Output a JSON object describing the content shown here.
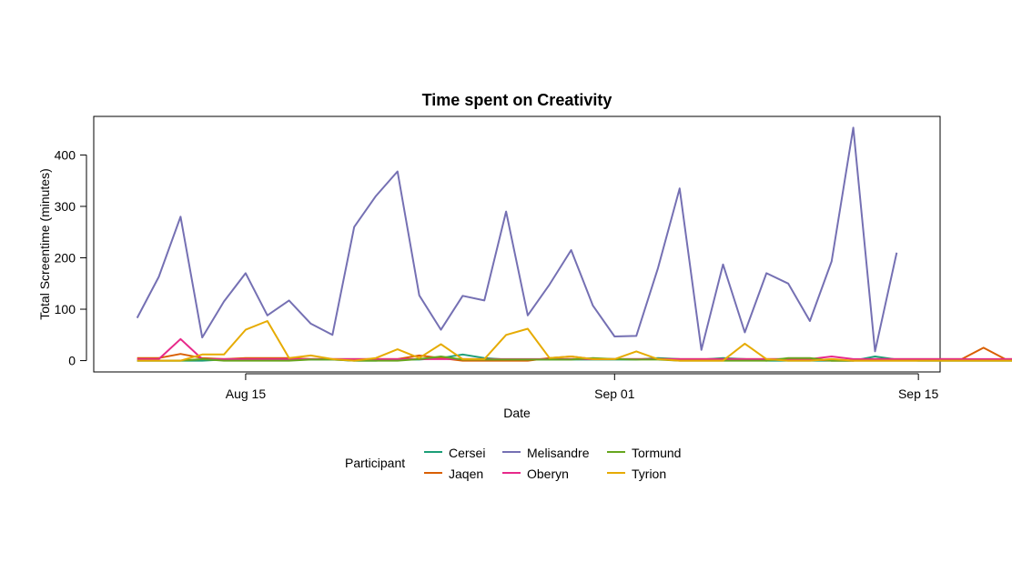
{
  "chart_data": {
    "type": "line",
    "title": "Time spent on Creativity",
    "xlabel": "Date",
    "ylabel": "Total Screentime (minutes)",
    "x_start": "2021-08-10",
    "x_ticks": [
      {
        "date": "2021-08-15",
        "label": "Aug 15"
      },
      {
        "date": "2021-09-01",
        "label": "Sep 01"
      },
      {
        "date": "2021-09-15",
        "label": "Sep 15"
      }
    ],
    "xlim": [
      "2021-08-08",
      "2021-09-16"
    ],
    "ylim": [
      -22,
      475
    ],
    "y_ticks": [
      0,
      100,
      200,
      300,
      400
    ],
    "grid": false,
    "legend": {
      "title": "Participant",
      "position": "bottom"
    },
    "series": [
      {
        "name": "Cersei",
        "color": "#1b9e77",
        "values": [
          0,
          0,
          0,
          0,
          2,
          2,
          2,
          2,
          2,
          2,
          0,
          0,
          2,
          2,
          5,
          12,
          5,
          2,
          2,
          2,
          2,
          2,
          2,
          2,
          5,
          3,
          2,
          5,
          3,
          0,
          0,
          0,
          0,
          0,
          8,
          2,
          0,
          0,
          0,
          0,
          0,
          0,
          0,
          0,
          0
        ]
      },
      {
        "name": "Jaqen",
        "color": "#d95f02",
        "values": [
          5,
          5,
          13,
          5,
          3,
          5,
          5,
          5,
          3,
          3,
          3,
          3,
          3,
          10,
          5,
          0,
          0,
          0,
          0,
          5,
          8,
          3,
          3,
          3,
          3,
          3,
          3,
          3,
          3,
          3,
          3,
          3,
          0,
          0,
          3,
          3,
          3,
          3,
          3,
          25,
          3,
          3,
          3,
          13,
          3
        ]
      },
      {
        "name": "Melisandre",
        "color": "#7570b3",
        "values": [
          83,
          163,
          280,
          45,
          115,
          170,
          88,
          117,
          72,
          50,
          260,
          320,
          368,
          127,
          60,
          126,
          117,
          290,
          88,
          148,
          215,
          107,
          47,
          48,
          180,
          335,
          21,
          187,
          55,
          170,
          150,
          77,
          193,
          453,
          18,
          210
        ]
      },
      {
        "name": "Oberyn",
        "color": "#e7298a",
        "values": [
          3,
          3,
          42,
          3,
          3,
          3,
          3,
          3,
          3,
          3,
          3,
          3,
          3,
          3,
          3,
          3,
          3,
          3,
          3,
          3,
          3,
          3,
          3,
          3,
          3,
          3,
          3,
          3,
          3,
          3,
          3,
          3,
          8,
          3,
          3,
          3,
          3,
          3,
          3,
          3,
          3,
          3,
          3,
          3,
          3
        ]
      },
      {
        "name": "Tormund",
        "color": "#66a61e",
        "values": [
          0,
          0,
          0,
          3,
          0,
          0,
          0,
          0,
          2,
          2,
          0,
          0,
          0,
          3,
          8,
          2,
          2,
          2,
          2,
          2,
          2,
          5,
          3,
          2,
          2,
          0,
          0,
          0,
          0,
          0,
          5,
          5,
          0,
          0,
          0,
          0,
          0,
          0,
          0,
          0,
          0,
          0,
          0,
          0,
          0
        ]
      },
      {
        "name": "Tyrion",
        "color": "#e6ab02",
        "values": [
          0,
          0,
          0,
          12,
          12,
          60,
          77,
          5,
          10,
          3,
          0,
          5,
          22,
          5,
          32,
          3,
          3,
          50,
          62,
          5,
          8,
          3,
          3,
          18,
          3,
          0,
          0,
          0,
          33,
          3,
          0,
          0,
          3,
          0,
          0,
          0,
          0,
          0,
          0,
          0,
          0,
          0,
          0,
          0,
          0
        ]
      }
    ]
  }
}
